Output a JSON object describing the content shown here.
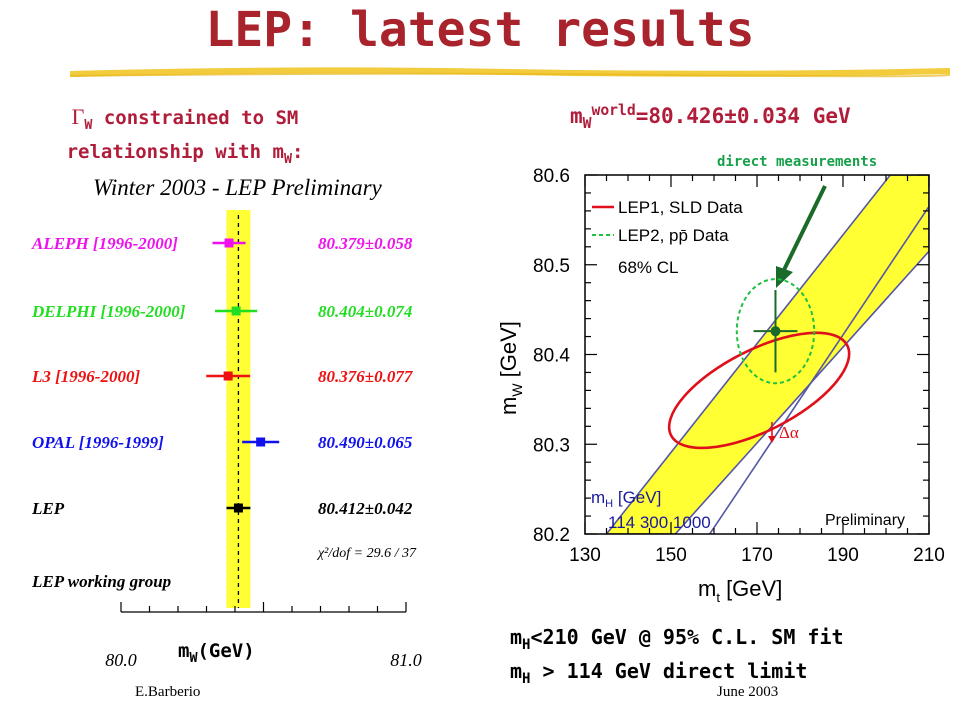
{
  "slide": {
    "title": "LEP: latest results"
  },
  "left_note": {
    "sub1": "W",
    "line1": " constrained to SM",
    "line2": "relationship with m",
    "sub2": "W",
    "colon": ":"
  },
  "right_head": {
    "pre": "m",
    "sub": "W",
    "sup": "world",
    "value": "=80.426±0.034 GeV"
  },
  "mh_text": {
    "l1_a": "m",
    "l1_sub": "H",
    "l1_b": "<210 GeV @ 95% C.L. SM fit",
    "l2_a": "m",
    "l2_sub": "H",
    "l2_b": " > 114 GeV direct limit"
  },
  "footer": {
    "author": "E.Barberio",
    "date": "June 2003"
  },
  "left_chart": {
    "xlabel": {
      "main": "m",
      "sub": "W",
      "unit": "(GeV)"
    }
  },
  "chart_data": [
    {
      "type": "scatter",
      "title": "Winter 2003 - LEP Preliminary",
      "xlabel": "mW(GeV)",
      "xlim": [
        80.0,
        81.0
      ],
      "xticks": [
        "80.0",
        "81.0"
      ],
      "average": {
        "value": 80.412,
        "error": 0.042
      },
      "series": [
        {
          "name": "ALEPH [1996-2000]",
          "value": 80.379,
          "error": 0.058,
          "label": "80.379±0.058",
          "color": "#ee11ee"
        },
        {
          "name": "DELPHI [1996-2000]",
          "value": 80.404,
          "error": 0.074,
          "label": "80.404±0.074",
          "color": "#22dd22"
        },
        {
          "name": "L3 [1996-2000]",
          "value": 80.376,
          "error": 0.077,
          "label": "80.376±0.077",
          "color": "#ee1111"
        },
        {
          "name": "OPAL [1996-1999]",
          "value": 80.49,
          "error": 0.065,
          "label": "80.490±0.065",
          "color": "#1111ee"
        },
        {
          "name": "LEP",
          "value": 80.412,
          "error": 0.042,
          "label": "80.412±0.042",
          "color": "#000000"
        }
      ],
      "chi2": "χ²/dof = 29.6 / 37",
      "note": "LEP working group"
    },
    {
      "type": "line",
      "title": "",
      "xlabel": {
        "main": "m",
        "sub": "t",
        "unit": "[GeV]"
      },
      "ylabel": {
        "main": "m",
        "sub": "W",
        "unit": "[GeV]"
      },
      "xlim": [
        130,
        210
      ],
      "ylim": [
        80.2,
        80.6
      ],
      "xticks": [
        "130",
        "150",
        "170",
        "190",
        "210"
      ],
      "yticks": [
        "80.2",
        "80.3",
        "80.4",
        "80.5",
        "80.6"
      ],
      "legend": [
        "LEP1, SLD Data",
        "LEP2, pp̄ Data"
      ],
      "cl_label": "68% CL",
      "annotation": "direct measurements",
      "delta_alpha": "Δα",
      "mh_label": {
        "main": "m",
        "sub": "H",
        "unit": "[GeV]"
      },
      "mh_values": "114   300   1000",
      "preliminary": "Preliminary",
      "direct": {
        "mt": 174.3,
        "mw": 80.426,
        "mt_err": 5.1,
        "mw_err": 0.034
      },
      "sm_band": {
        "lower_edge": [
          [
            151,
            80.2
          ],
          [
            210,
            80.515
          ]
        ],
        "mid_line": [
          [
            159,
            80.2
          ],
          [
            210,
            80.565
          ]
        ],
        "upper_edge": [
          [
            135,
            80.2
          ],
          [
            201,
            80.6
          ]
        ]
      },
      "contours": {
        "lep1_sld": {
          "mt": 170.5,
          "mw": 80.36,
          "mt_halfwidth": 23,
          "mw_halfwidth": 0.045,
          "tilt_deg": -27,
          "color": "#e0101a"
        },
        "lep2_ppbar": {
          "mt": 174.3,
          "mw": 80.426,
          "mt_halfwidth": 9,
          "mw_halfwidth": 0.058,
          "color": "#20c040"
        }
      },
      "colors": {
        "band": "#ffff33",
        "band_edge": "#5656a6",
        "mh_text": "#1a1aa0",
        "point": "#1a6a2a"
      }
    }
  ]
}
